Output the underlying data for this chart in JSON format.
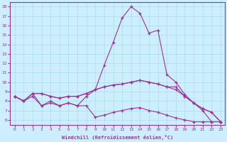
{
  "xlabel": "Windchill (Refroidissement éolien,°C)",
  "x": [
    0,
    1,
    2,
    3,
    4,
    5,
    6,
    7,
    8,
    9,
    10,
    11,
    12,
    13,
    14,
    15,
    16,
    17,
    18,
    19,
    20,
    21,
    22,
    23
  ],
  "line1": [
    8.5,
    8.0,
    8.8,
    7.5,
    8.0,
    7.5,
    7.8,
    7.5,
    8.5,
    9.2,
    11.8,
    14.2,
    16.8,
    18.0,
    17.3,
    15.2,
    15.5,
    10.8,
    10.0,
    8.7,
    7.8,
    7.0,
    5.8,
    5.8
  ],
  "line2": [
    8.5,
    8.0,
    8.8,
    8.8,
    8.5,
    8.3,
    8.5,
    8.5,
    8.8,
    9.2,
    9.5,
    9.7,
    9.8,
    10.0,
    10.2,
    10.0,
    9.8,
    9.5,
    9.5,
    8.5,
    7.8,
    7.2,
    6.8,
    5.8
  ],
  "line3": [
    8.5,
    8.0,
    8.8,
    8.8,
    8.5,
    8.3,
    8.5,
    8.5,
    8.8,
    9.2,
    9.5,
    9.7,
    9.8,
    10.0,
    10.2,
    10.0,
    9.8,
    9.5,
    9.2,
    8.5,
    7.8,
    7.2,
    6.8,
    5.8
  ],
  "line4": [
    8.5,
    8.0,
    8.5,
    7.5,
    7.8,
    7.5,
    7.8,
    7.5,
    7.5,
    6.3,
    6.5,
    6.8,
    7.0,
    7.2,
    7.3,
    7.0,
    6.8,
    6.5,
    6.2,
    6.0,
    5.8,
    5.8,
    5.8,
    5.8
  ],
  "line_color": "#993399",
  "bg_color": "#cceeff",
  "grid_color": "#aadddd",
  "ylim": [
    5.5,
    18.5
  ],
  "xlim": [
    -0.5,
    23.5
  ],
  "yticks": [
    6,
    7,
    8,
    9,
    10,
    11,
    12,
    13,
    14,
    15,
    16,
    17,
    18
  ],
  "xticks": [
    0,
    1,
    2,
    3,
    4,
    5,
    6,
    7,
    8,
    9,
    10,
    11,
    12,
    13,
    14,
    15,
    16,
    17,
    18,
    19,
    20,
    21,
    22,
    23
  ]
}
